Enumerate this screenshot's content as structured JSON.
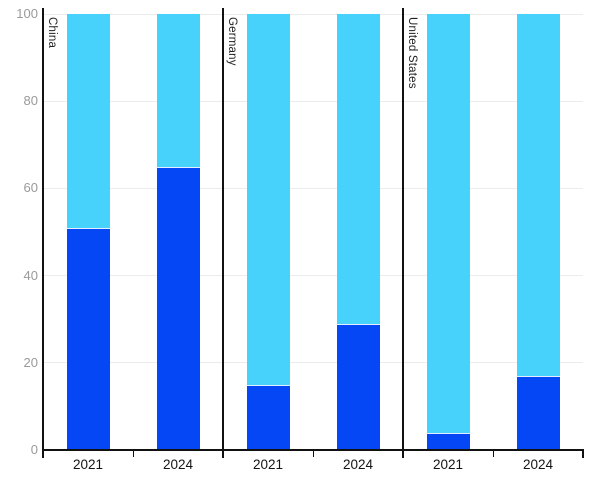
{
  "chart": {
    "background": "#ffffff",
    "colors": {
      "dark_blue": "#0546F5",
      "light_blue": "#47D2FC",
      "axis": "#111111",
      "gridline": "#ececec",
      "y_label": "#9a9a9a",
      "x_label": "#151515",
      "group_label": "#1f1f1f"
    }
  },
  "chart_data": {
    "type": "bar",
    "variant": "grouped-100pct-stacked",
    "title": "",
    "xlabel": "",
    "ylabel": "",
    "ylim": [
      0,
      100
    ],
    "yticks": [
      0,
      20,
      40,
      60,
      80,
      100
    ],
    "grid": true,
    "legend": "none",
    "groups": [
      "China",
      "Germany",
      "United States"
    ],
    "categories": [
      "2021",
      "2024"
    ],
    "series": [
      {
        "name": "dark-blue-bottom",
        "color": "#0546F5",
        "values": [
          [
            51,
            65
          ],
          [
            15,
            29
          ],
          [
            4,
            17
          ]
        ]
      },
      {
        "name": "light-blue-top",
        "color": "#47D2FC",
        "values": [
          [
            49,
            35
          ],
          [
            85,
            71
          ],
          [
            96,
            83
          ]
        ]
      }
    ]
  }
}
